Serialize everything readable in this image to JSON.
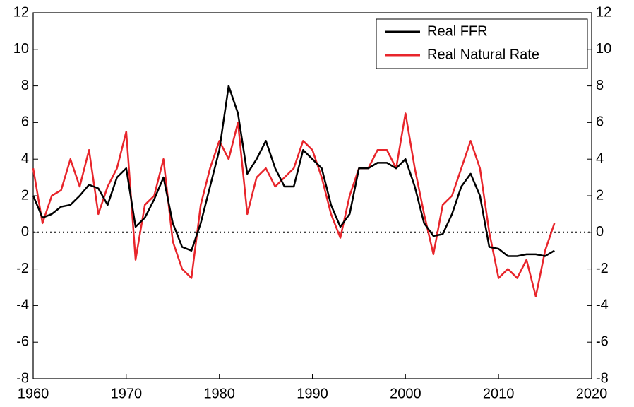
{
  "chart_data": {
    "type": "line",
    "x": [
      1960,
      1961,
      1962,
      1963,
      1964,
      1965,
      1966,
      1967,
      1968,
      1969,
      1970,
      1971,
      1972,
      1973,
      1974,
      1975,
      1976,
      1977,
      1978,
      1979,
      1980,
      1981,
      1982,
      1983,
      1984,
      1985,
      1986,
      1987,
      1988,
      1989,
      1990,
      1991,
      1992,
      1993,
      1994,
      1995,
      1996,
      1997,
      1998,
      1999,
      2000,
      2001,
      2002,
      2003,
      2004,
      2005,
      2006,
      2007,
      2008,
      2009,
      2010,
      2011,
      2012,
      2013,
      2014,
      2015,
      2016
    ],
    "series": [
      {
        "name": "Real FFR",
        "color": "#000000",
        "values": [
          2.0,
          0.8,
          1.0,
          1.4,
          1.5,
          2.0,
          2.6,
          2.4,
          1.5,
          3.0,
          3.5,
          0.3,
          0.8,
          1.8,
          3.0,
          0.5,
          -0.8,
          -1.0,
          0.5,
          2.5,
          4.5,
          8.0,
          6.5,
          3.2,
          4.0,
          5.0,
          3.5,
          2.5,
          2.5,
          4.5,
          4.0,
          3.5,
          1.5,
          0.3,
          1.0,
          3.5,
          3.5,
          3.8,
          3.8,
          3.5,
          4.0,
          2.5,
          0.5,
          -0.2,
          -0.1,
          1.0,
          2.5,
          3.2,
          2.0,
          -0.8,
          -0.9,
          -1.3,
          -1.3,
          -1.2,
          -1.2,
          -1.3,
          -1.0
        ]
      },
      {
        "name": "Real Natural Rate",
        "color": "#e8252b",
        "values": [
          3.5,
          0.5,
          2.0,
          2.3,
          4.0,
          2.5,
          4.5,
          1.0,
          2.5,
          3.5,
          5.5,
          -1.5,
          1.5,
          2.0,
          4.0,
          -0.5,
          -2.0,
          -2.5,
          1.5,
          3.5,
          5.0,
          4.0,
          6.0,
          1.0,
          3.0,
          3.5,
          2.5,
          3.0,
          3.5,
          5.0,
          4.5,
          3.0,
          1.0,
          -0.3,
          2.0,
          3.5,
          3.5,
          4.5,
          4.5,
          3.5,
          6.5,
          3.5,
          1.0,
          -1.2,
          1.5,
          2.0,
          3.5,
          5.0,
          3.5,
          0.0,
          -2.5,
          -2.0,
          -2.5,
          -1.5,
          -3.5,
          -1.0,
          0.5
        ]
      }
    ],
    "xlim": [
      1960,
      2020
    ],
    "xticks": [
      1960,
      1970,
      1980,
      1990,
      2000,
      2010,
      2020
    ],
    "ylim": [
      -8,
      12
    ],
    "yticks": [
      -8,
      -6,
      -4,
      -2,
      0,
      2,
      4,
      6,
      8,
      10,
      12
    ],
    "reference_line": 0,
    "legend": "upper right"
  }
}
